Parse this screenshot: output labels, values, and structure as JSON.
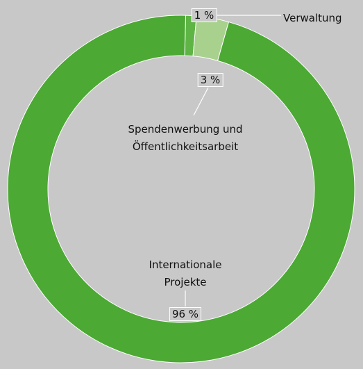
{
  "chart_data": {
    "type": "donut",
    "categories": [
      "Verwaltung",
      "Spendenwerbung und Öffentlichkeitsarbeit",
      "Internationale Projekte"
    ],
    "values": [
      1,
      3,
      96
    ],
    "value_labels": [
      "1 %",
      "3 %",
      "96 %"
    ],
    "colors": [
      "#5fb446",
      "#a9d18e",
      "#4ca934"
    ]
  }
}
